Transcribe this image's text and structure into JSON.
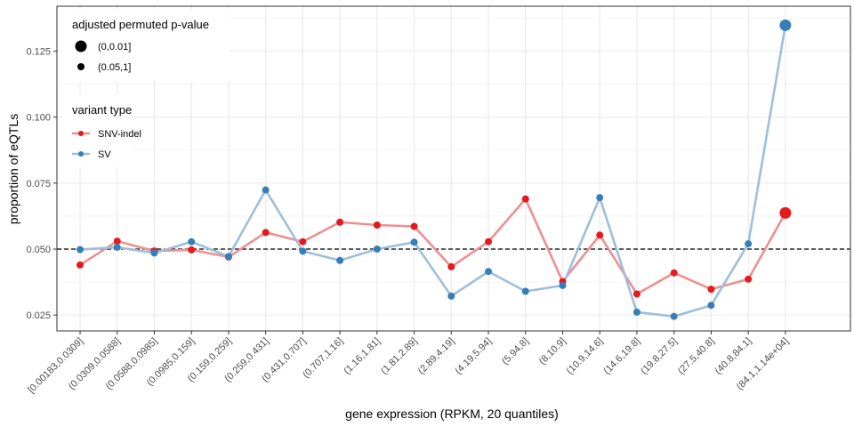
{
  "chart_data": {
    "type": "line",
    "xlabel": "gene expression (RPKM, 20 quantiles)",
    "ylabel": "proportion of eQTLs",
    "ylim": [
      0.019,
      0.142
    ],
    "yticks": [
      "0.025",
      "0.050",
      "0.075",
      "0.100",
      "0.125"
    ],
    "reference_line": {
      "y": 0.05,
      "style": "dashed"
    },
    "grid": true,
    "categories": [
      "[0.00183,0.0309]",
      "(0.0309,0.0588]",
      "(0.0588,0.0985]",
      "(0.0985,0.159]",
      "(0.159,0.259]",
      "(0.259,0.431]",
      "(0.431,0.707]",
      "(0.707,1.16]",
      "(1.16,1.81]",
      "(1.81,2.89]",
      "(2.89,4.19]",
      "(4.19,5.94]",
      "(5.94,8]",
      "(8,10.9]",
      "(10.9,14.6]",
      "(14.6,19.8]",
      "(19.8,27.5]",
      "(27.5,40.8]",
      "(40.8,84.1]",
      "(84.1,1.14e+04]"
    ],
    "series": [
      {
        "name": "SNV-indel",
        "color": "#e41a1c",
        "line_color": "#ee8f90",
        "values": [
          0.044,
          0.053,
          0.0493,
          0.0497,
          0.047,
          0.0563,
          0.0528,
          0.0602,
          0.0591,
          0.0586,
          0.0433,
          0.0528,
          0.069,
          0.0377,
          0.0553,
          0.033,
          0.041,
          0.0348,
          0.0386,
          0.0637
        ],
        "pvalue_class": [
          "(0.05,1]",
          "(0.05,1]",
          "(0.05,1]",
          "(0.05,1]",
          "(0.05,1]",
          "(0.05,1]",
          "(0.05,1]",
          "(0.05,1]",
          "(0.05,1]",
          "(0.05,1]",
          "(0.05,1]",
          "(0.05,1]",
          "(0.05,1]",
          "(0.05,1]",
          "(0.05,1]",
          "(0.05,1]",
          "(0.05,1]",
          "(0.05,1]",
          "(0.05,1]",
          "(0,0.01]"
        ]
      },
      {
        "name": "SV",
        "color": "#377eb8",
        "line_color": "#9dbfdb",
        "values": [
          0.0498,
          0.0507,
          0.0485,
          0.0528,
          0.0472,
          0.0724,
          0.0492,
          0.0457,
          0.05,
          0.0526,
          0.0322,
          0.0415,
          0.034,
          0.0362,
          0.0695,
          0.0261,
          0.0245,
          0.0287,
          0.052,
          0.1348
        ],
        "pvalue_class": [
          "(0.05,1]",
          "(0.05,1]",
          "(0.05,1]",
          "(0.05,1]",
          "(0.05,1]",
          "(0.05,1]",
          "(0.05,1]",
          "(0.05,1]",
          "(0.05,1]",
          "(0.05,1]",
          "(0.05,1]",
          "(0.05,1]",
          "(0.05,1]",
          "(0.05,1]",
          "(0.05,1]",
          "(0.05,1]",
          "(0.05,1]",
          "(0.05,1]",
          "(0.05,1]",
          "(0,0.01]"
        ]
      }
    ],
    "legend": {
      "placement": "top-left",
      "size_title": "adjusted permuted p-value",
      "size_items": [
        "(0,0.01]",
        "(0.05,1]"
      ],
      "color_title": "variant type",
      "color_items": [
        "SNV-indel",
        "SV"
      ]
    }
  }
}
